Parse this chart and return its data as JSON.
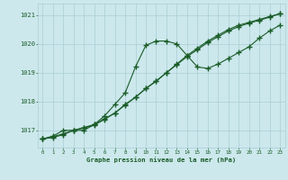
{
  "title": "Graphe pression niveau de la mer (hPa)",
  "xlabel_ticks": [
    0,
    1,
    2,
    3,
    4,
    5,
    6,
    7,
    8,
    9,
    10,
    11,
    12,
    13,
    14,
    15,
    16,
    17,
    18,
    19,
    20,
    21,
    22,
    23
  ],
  "yticks": [
    1017,
    1018,
    1019,
    1020,
    1021
  ],
  "ylim": [
    1016.4,
    1021.4
  ],
  "xlim": [
    -0.5,
    23.5
  ],
  "bg_color": "#cce8ec",
  "grid_color": "#aacdd4",
  "line_color": "#1a5c28",
  "marker_color": "#1a5c28",
  "text_color": "#1a5c28",
  "series1_curve": [
    1016.7,
    1016.8,
    1017.0,
    1017.0,
    1017.0,
    1017.2,
    1017.5,
    1017.9,
    1018.3,
    1019.2,
    1019.95,
    1020.1,
    1020.1,
    1020.0,
    1019.6,
    1019.2,
    1019.15,
    1019.3,
    1019.5,
    1019.7,
    1019.9,
    1020.2,
    1020.45,
    1020.65
  ],
  "series2_linear": [
    1016.7,
    1016.75,
    1016.85,
    1017.0,
    1017.1,
    1017.2,
    1017.4,
    1017.6,
    1017.9,
    1018.15,
    1018.45,
    1018.7,
    1019.0,
    1019.3,
    1019.6,
    1019.85,
    1020.1,
    1020.3,
    1020.5,
    1020.65,
    1020.75,
    1020.85,
    1020.95,
    1021.05
  ],
  "series3_linear": [
    1016.7,
    1016.78,
    1016.88,
    1017.0,
    1017.08,
    1017.18,
    1017.38,
    1017.6,
    1017.88,
    1018.15,
    1018.45,
    1018.72,
    1019.0,
    1019.28,
    1019.56,
    1019.8,
    1020.05,
    1020.25,
    1020.45,
    1020.6,
    1020.72,
    1020.82,
    1020.93,
    1021.05
  ]
}
